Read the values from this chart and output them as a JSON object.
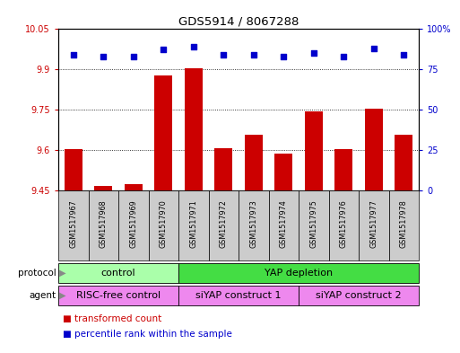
{
  "title": "GDS5914 / 8067288",
  "samples": [
    "GSM1517967",
    "GSM1517968",
    "GSM1517969",
    "GSM1517970",
    "GSM1517971",
    "GSM1517972",
    "GSM1517973",
    "GSM1517974",
    "GSM1517975",
    "GSM1517976",
    "GSM1517977",
    "GSM1517978"
  ],
  "bar_values": [
    9.604,
    9.468,
    9.473,
    9.876,
    9.904,
    9.607,
    9.657,
    9.585,
    9.745,
    9.603,
    9.753,
    9.657
  ],
  "dot_values": [
    84,
    83,
    83,
    87,
    89,
    84,
    84,
    83,
    85,
    83,
    88,
    84
  ],
  "ylim_left": [
    9.45,
    10.05
  ],
  "ylim_right": [
    0,
    100
  ],
  "yticks_left": [
    9.45,
    9.6,
    9.75,
    9.9,
    10.05
  ],
  "yticks_right": [
    0,
    25,
    50,
    75,
    100
  ],
  "ytick_labels_left": [
    "9.45",
    "9.6",
    "9.75",
    "9.9",
    "10.05"
  ],
  "ytick_labels_right": [
    "0",
    "25",
    "50",
    "75",
    "100%"
  ],
  "bar_color": "#cc0000",
  "dot_color": "#0000cc",
  "bar_baseline": 9.45,
  "protocol_groups": [
    {
      "label": "control",
      "start": 0,
      "end": 4,
      "color": "#aaffaa"
    },
    {
      "label": "YAP depletion",
      "start": 4,
      "end": 12,
      "color": "#44dd44"
    }
  ],
  "agent_groups": [
    {
      "label": "RISC-free control",
      "start": 0,
      "end": 4,
      "color": "#ee88ee"
    },
    {
      "label": "siYAP construct 1",
      "start": 4,
      "end": 8,
      "color": "#ee88ee"
    },
    {
      "label": "siYAP construct 2",
      "start": 8,
      "end": 12,
      "color": "#ee88ee"
    }
  ],
  "legend_items": [
    {
      "label": "transformed count",
      "color": "#cc0000"
    },
    {
      "label": "percentile rank within the sample",
      "color": "#0000cc"
    }
  ],
  "protocol_label": "protocol",
  "agent_label": "agent",
  "grid_color": "#000000",
  "tick_color_left": "#cc0000",
  "tick_color_right": "#0000cc",
  "bg_color": "#ffffff",
  "plot_bg_color": "#ffffff",
  "sample_box_color": "#cccccc",
  "arrow_color": "#888888"
}
